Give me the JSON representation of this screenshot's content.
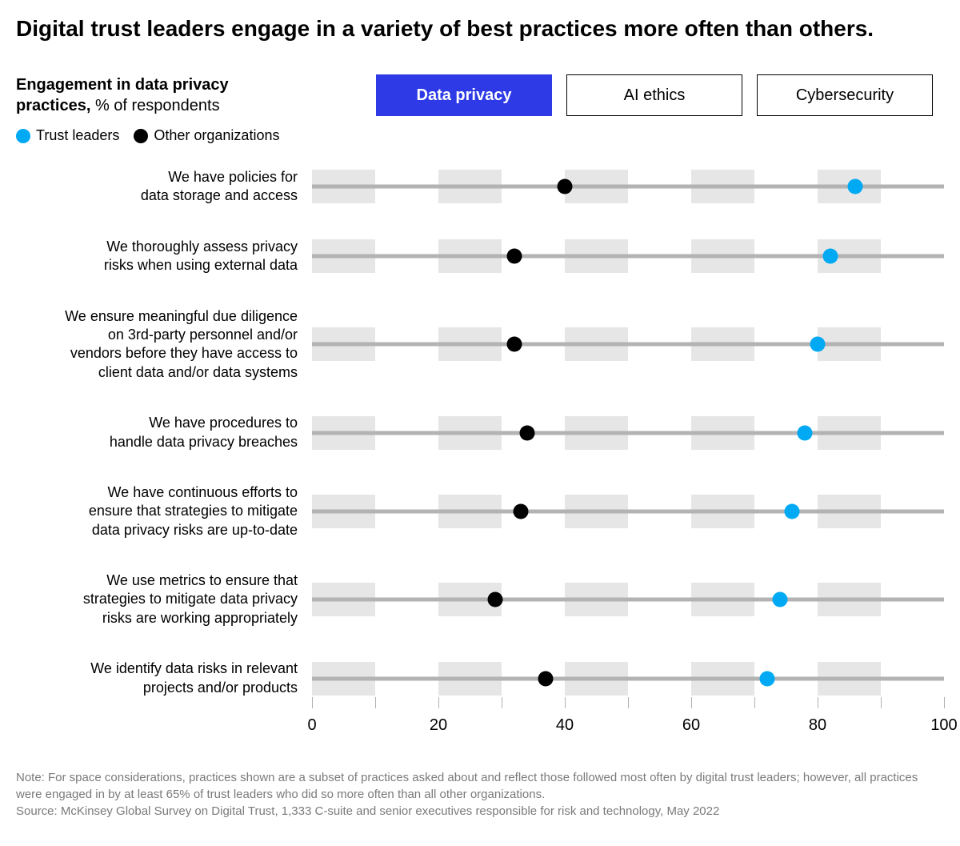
{
  "title": "Digital trust leaders engage in a variety of best practices more often than others.",
  "subtitle_bold": "Engagement in data privacy practices,",
  "subtitle_rest": " % of respondents",
  "legend": {
    "a_label": "Trust leaders",
    "a_color": "#00a9f4",
    "b_label": "Other organizations",
    "b_color": "#000000"
  },
  "tabs": [
    {
      "label": "Data privacy",
      "active": true
    },
    {
      "label": "AI ethics",
      "active": false
    },
    {
      "label": "Cybersecurity",
      "active": false
    }
  ],
  "tab_active_bg": "#2d3ae6",
  "chart": {
    "type": "dot-dumbbell",
    "xlim": [
      0,
      100
    ],
    "xtick_step_minor": 10,
    "xtick_labels": [
      0,
      20,
      40,
      60,
      80,
      100
    ],
    "band_color": "#e6e6e6",
    "band_alt_color": "#ffffff",
    "track_color": "#b3b3b3",
    "dot_radius": 9.5,
    "rows": [
      {
        "label": "We have policies for\ndata storage and access",
        "a": 86,
        "b": 40
      },
      {
        "label": "We thoroughly assess privacy\nrisks when using external data",
        "a": 82,
        "b": 32
      },
      {
        "label": "We ensure meaningful due diligence\non 3rd-party personnel and/or\nvendors before they have access to\nclient data and/or data systems",
        "a": 80,
        "b": 32
      },
      {
        "label": "We have procedures to\nhandle data privacy breaches",
        "a": 78,
        "b": 34
      },
      {
        "label": "We have continuous efforts to\nensure that strategies to mitigate\ndata privacy risks are up-to-date",
        "a": 76,
        "b": 33
      },
      {
        "label": "We use metrics to ensure that\nstrategies to mitigate data privacy\nrisks are working appropriately",
        "a": 74,
        "b": 29
      },
      {
        "label": "We identify data risks in relevant\nprojects and/or products",
        "a": 72,
        "b": 37
      }
    ]
  },
  "footer": {
    "note": "Note: For space considerations, practices shown are a subset of practices asked about and reflect those followed most often by digital trust leaders; however, all practices were engaged in by at least 65% of trust leaders who did so more often than all other organizations.",
    "source": "Source: McKinsey Global Survey on Digital Trust, 1,333 C-suite and senior executives responsible for risk and technology, May 2022",
    "color": "#7a7a7a"
  }
}
